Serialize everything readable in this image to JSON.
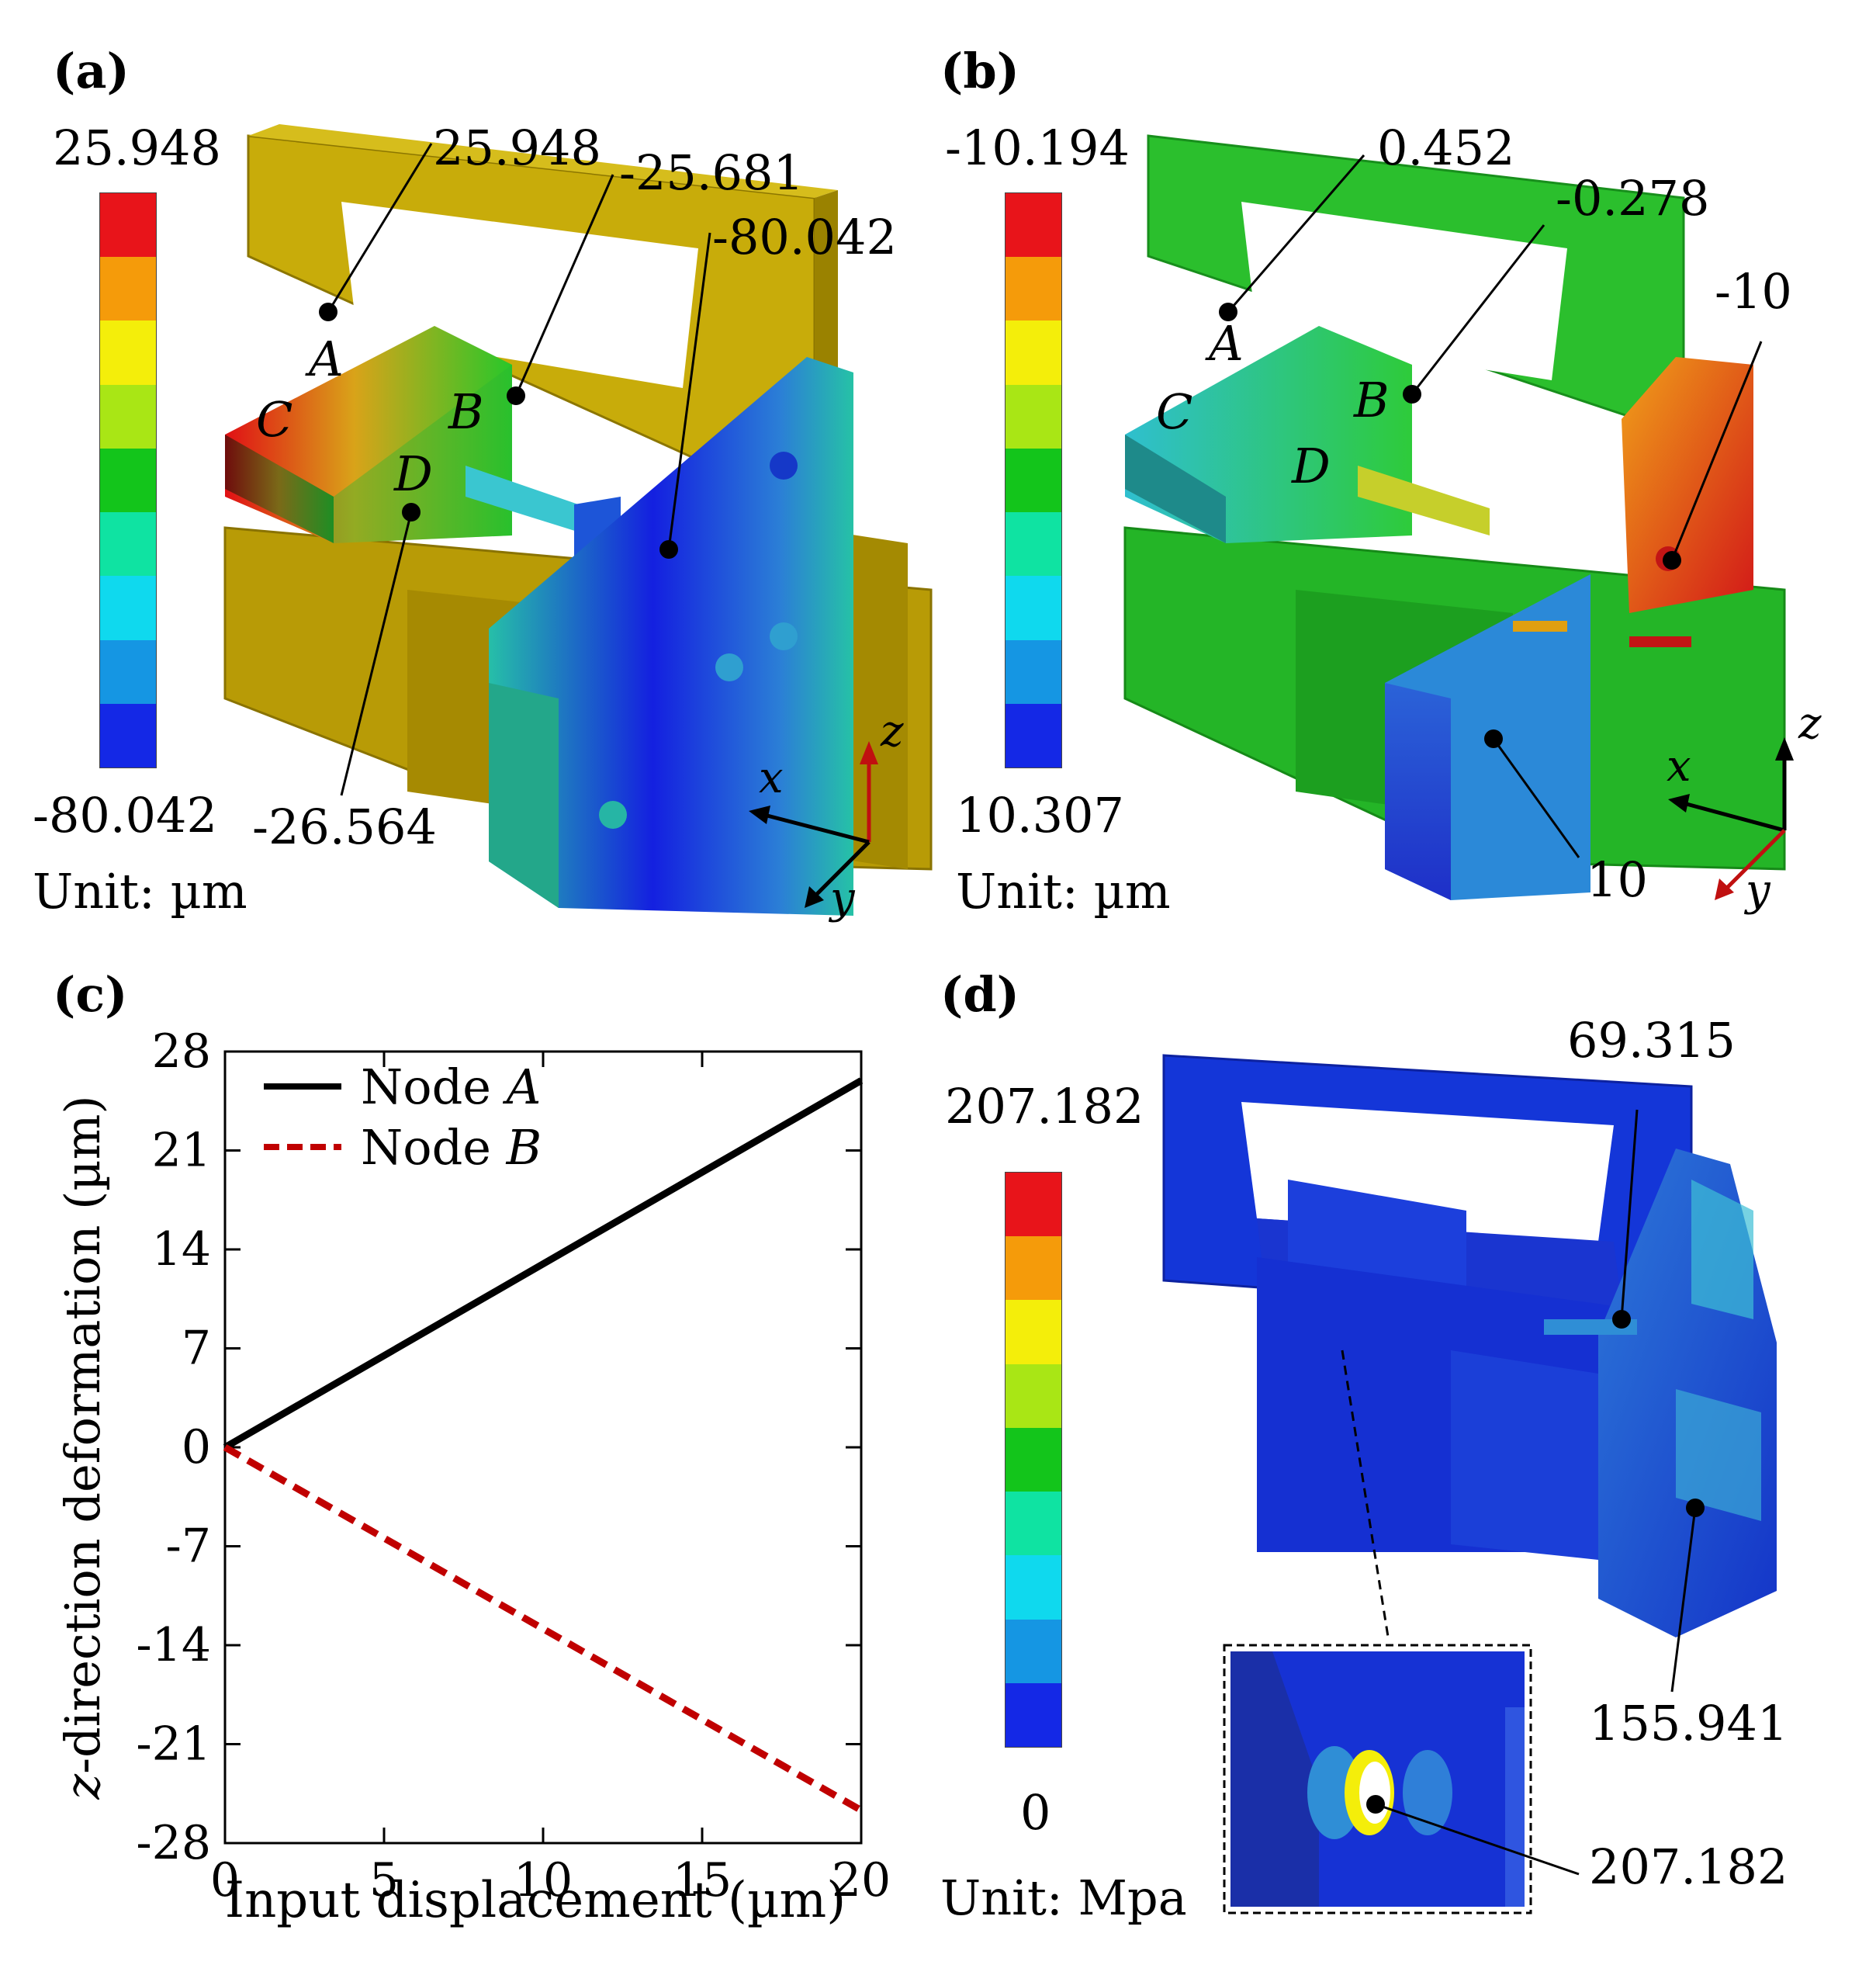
{
  "panels": {
    "a": {
      "letter": "(a)",
      "bar_max": "25.948",
      "bar_min": "-80.042",
      "unit": "Unit: µm",
      "node_labels": [
        "A",
        "B",
        "C",
        "D"
      ],
      "callouts": [
        "25.948",
        "-25.681",
        "-80.042",
        "-26.564"
      ],
      "axes": [
        "x",
        "y",
        "z"
      ]
    },
    "b": {
      "letter": "(b)",
      "bar_max": "-10.194",
      "bar_min": "10.307",
      "unit": "Unit: µm",
      "node_labels": [
        "A",
        "B",
        "C",
        "D"
      ],
      "callouts": [
        "0.452",
        "-0.278",
        "-10",
        "10"
      ],
      "axes": [
        "x",
        "y",
        "z"
      ]
    },
    "c": {
      "letter": "(c)"
    },
    "d": {
      "letter": "(d)",
      "bar_max": "207.182",
      "bar_min": "0",
      "unit": "Unit: Mpa",
      "callouts": [
        "69.315",
        "155.941",
        "207.182"
      ]
    }
  },
  "colorbar_colors": [
    "#e8141a",
    "#f59b0a",
    "#f4ee0a",
    "#a9e615",
    "#13c51b",
    "#0fe3a2",
    "#0fd9ee",
    "#1596e3",
    "#1428e6"
  ],
  "chart_data": {
    "type": "line",
    "xlabel": "Input displacement (µm)",
    "ylabel_italic": "z",
    "ylabel_rest": "-direction deformation (µm)",
    "xlim": [
      0,
      20
    ],
    "ylim": [
      -28,
      28
    ],
    "xticks": [
      "0",
      "5",
      "10",
      "15",
      "20"
    ],
    "yticks": [
      "28",
      "21",
      "14",
      "7",
      "0",
      "-7",
      "-14",
      "-21",
      "-28"
    ],
    "series": [
      {
        "name_prefix": "Node ",
        "name_italic": "A",
        "color": "#000000",
        "dash": false,
        "x": [
          0,
          20
        ],
        "y": [
          0,
          25.948
        ]
      },
      {
        "name_prefix": "Node ",
        "name_italic": "B",
        "color": "#c00000",
        "dash": true,
        "x": [
          0,
          20
        ],
        "y": [
          0,
          -25.681
        ]
      }
    ],
    "grid": false,
    "legend": "top-left"
  }
}
